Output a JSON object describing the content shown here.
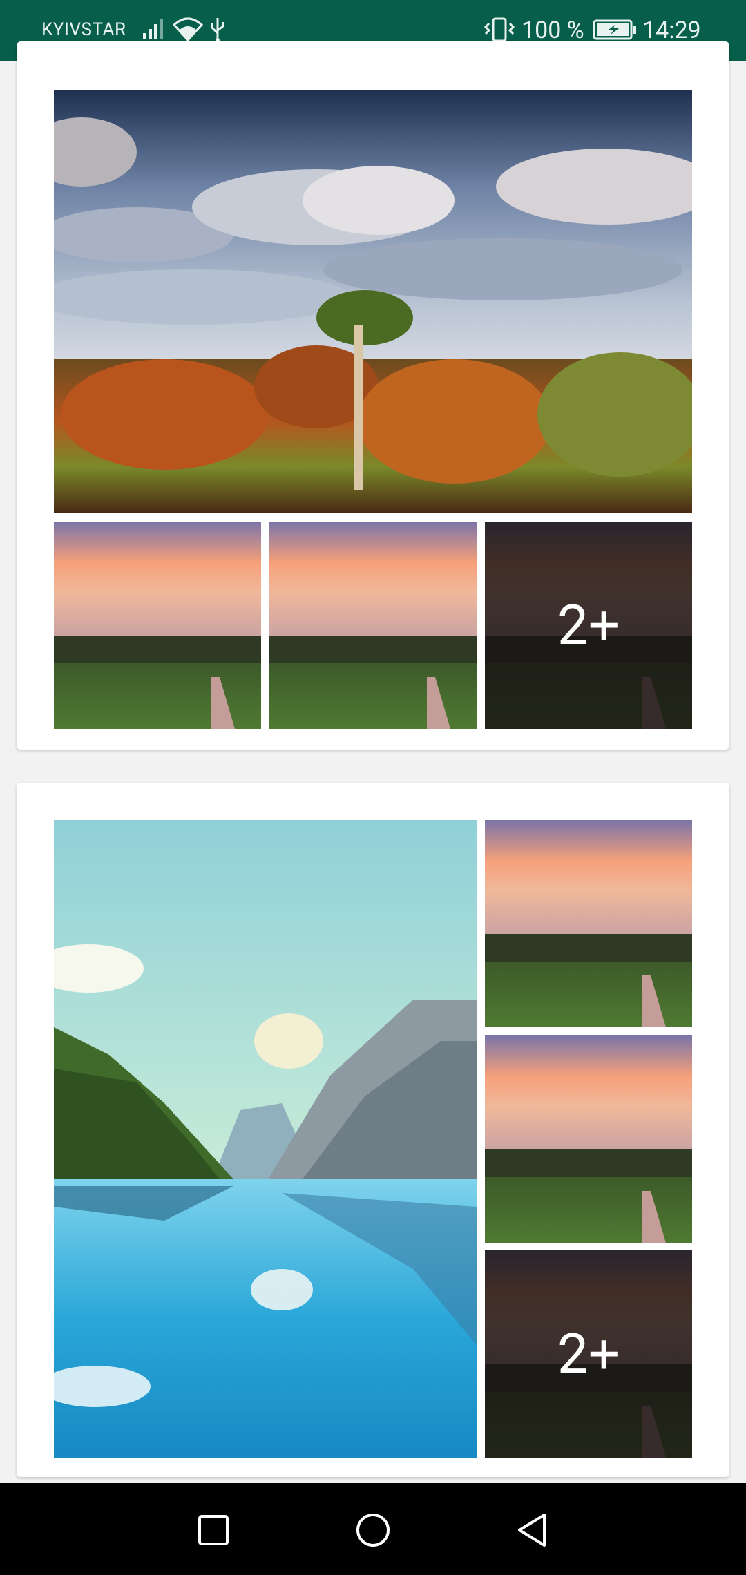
{
  "status_bar": {
    "carrier": "KYIVSTAR",
    "battery_percent": "100 %",
    "time": "14:29",
    "icons": [
      "signal-icon",
      "wifi-icon",
      "usb-icon",
      "vibrate-icon",
      "battery-charging-icon"
    ]
  },
  "posts": [
    {
      "main_image": "forest-landscape-image",
      "thumbnails": [
        "sunset-field-path-image",
        "sunset-field-path-image",
        "sunset-field-path-image"
      ],
      "more_count_label": "2+"
    },
    {
      "main_image": "mountain-lake-image",
      "thumbnails": [
        "sunset-field-path-image",
        "sunset-field-path-image",
        "sunset-field-path-image"
      ],
      "more_count_label": "2+"
    }
  ],
  "nav_bar": {
    "buttons": [
      "recents-button",
      "home-button",
      "back-button"
    ]
  },
  "colors": {
    "status_bar": "#075e4a",
    "background": "#f2f2f2",
    "card": "#ffffff",
    "nav_bar": "#000000"
  }
}
